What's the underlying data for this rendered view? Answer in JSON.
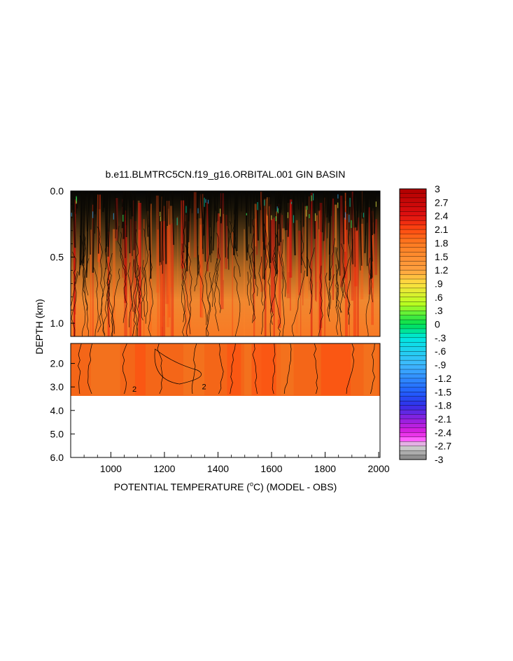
{
  "chart_data": {
    "type": "heatmap",
    "title": "b.e11.BLMTRC5CN.f19_g16.ORBITAL.001 GIN BASIN",
    "xlabel_parts": [
      "POTENTIAL TEMPERATURE (",
      "o",
      "C) (MODEL - OBS)"
    ],
    "ylabel": "DEPTH (km)",
    "xlim": [
      850,
      2005
    ],
    "x_ticks": [
      "1000",
      "1200",
      "1400",
      "1600",
      "1800",
      "2000"
    ],
    "x_tick_values": [
      1000,
      1200,
      1400,
      1600,
      1800,
      2000
    ],
    "upper_panel": {
      "ylim": [
        0.0,
        1.1
      ],
      "y_ticks": [
        "0.0",
        "0.5",
        "1.0"
      ],
      "y_tick_values": [
        0.0,
        0.5,
        1.0
      ]
    },
    "lower_panel": {
      "ylim": [
        1.15,
        6.0
      ],
      "y_ticks": [
        "2.0",
        "3.0",
        "4.0",
        "5.0",
        "6.0"
      ],
      "y_tick_values": [
        2.0,
        3.0,
        4.0,
        5.0,
        6.0
      ],
      "data_bottom_depth": 3.35
    },
    "contour_labels": [
      "2",
      "2"
    ],
    "colorbar": {
      "min": -3.0,
      "max": 3.0,
      "labels": [
        "3",
        "2.7",
        "2.4",
        "2.1",
        "1.8",
        "1.5",
        "1.2",
        ".9",
        ".6",
        ".3",
        "0",
        "-.3",
        "-.6",
        "-.9",
        "-1.2",
        "-1.5",
        "-1.8",
        "-2.1",
        "-2.4",
        "-2.7",
        "-3"
      ],
      "label_values": [
        3.0,
        2.7,
        2.4,
        2.1,
        1.8,
        1.5,
        1.2,
        0.9,
        0.6,
        0.3,
        0.0,
        -0.3,
        -0.6,
        -0.9,
        -1.2,
        -1.5,
        -1.8,
        -2.1,
        -2.4,
        -2.7,
        -3.0
      ],
      "stops": [
        {
          "v": 3.0,
          "c": "#b00000"
        },
        {
          "v": 2.4,
          "c": "#e01010"
        },
        {
          "v": 2.1,
          "c": "#ff4a10"
        },
        {
          "v": 1.8,
          "c": "#ff7a20"
        },
        {
          "v": 1.2,
          "c": "#ffa040"
        },
        {
          "v": 0.9,
          "c": "#ffe040"
        },
        {
          "v": 0.45,
          "c": "#b8ff20"
        },
        {
          "v": 0.0,
          "c": "#00e050"
        },
        {
          "v": -0.3,
          "c": "#00e8e0"
        },
        {
          "v": -0.9,
          "c": "#40b8ff"
        },
        {
          "v": -1.5,
          "c": "#2060ff"
        },
        {
          "v": -1.8,
          "c": "#3030e8"
        },
        {
          "v": -2.1,
          "c": "#9020e0"
        },
        {
          "v": -2.4,
          "c": "#e020e0"
        },
        {
          "v": -2.55,
          "c": "#ff60ff"
        },
        {
          "v": -2.7,
          "c": "#d8d8d8"
        },
        {
          "v": -3.0,
          "c": "#808080"
        }
      ]
    }
  }
}
